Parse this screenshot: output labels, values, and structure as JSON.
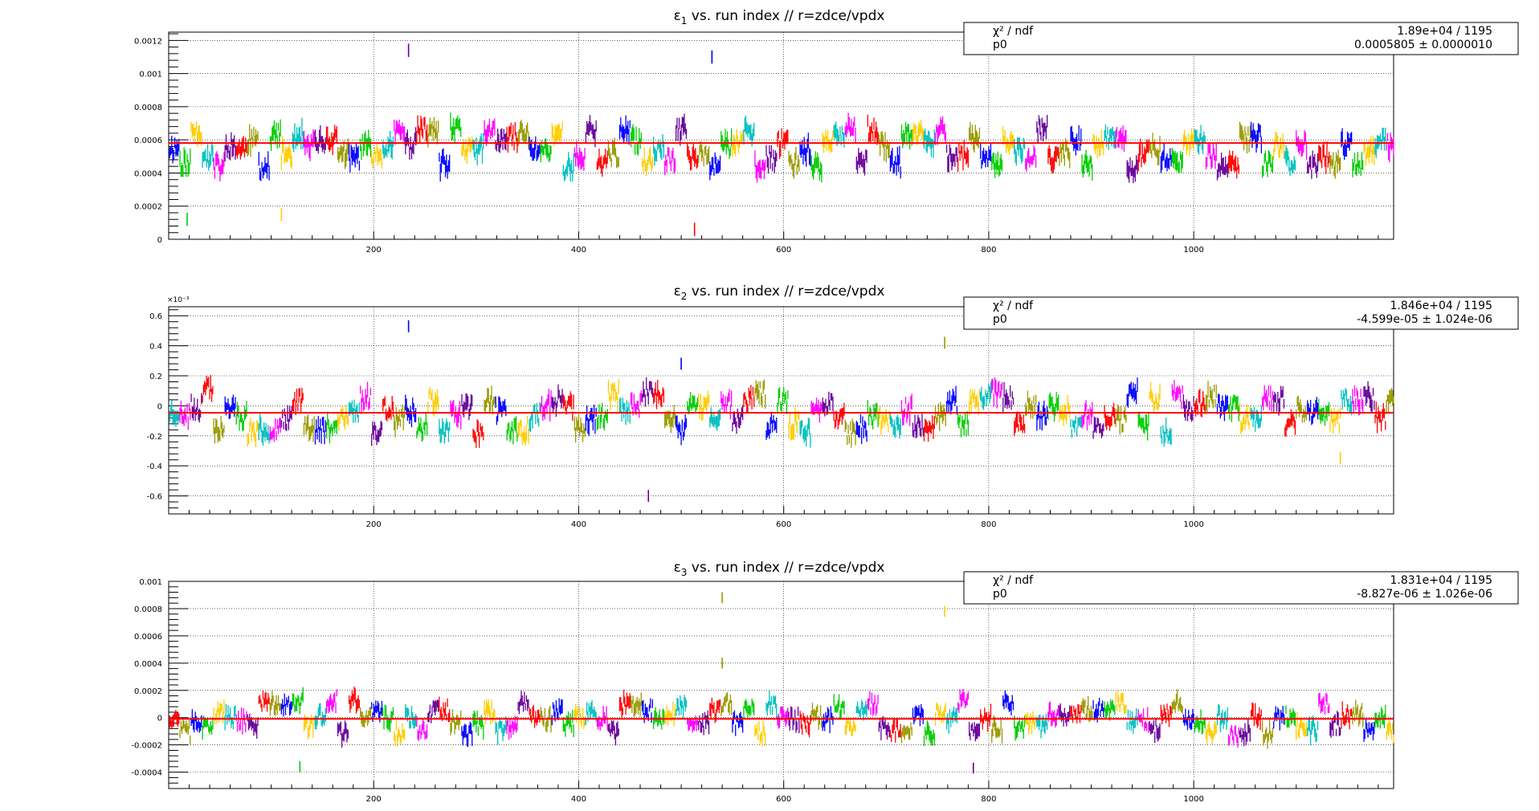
{
  "chart_data": [
    {
      "type": "scatter",
      "title_prefix": "ε",
      "title_sub": "1",
      "title_suffix": " vs. run index // r=zdce/vpdx",
      "xlabel": "",
      "ylabel": "",
      "xlim": [
        0,
        1195
      ],
      "ylim": [
        0,
        0.00125
      ],
      "xticks": [
        200,
        400,
        600,
        800,
        1000
      ],
      "yticks": [
        0,
        0.0002,
        0.0004,
        0.0006,
        0.0008,
        0.001,
        0.0012
      ],
      "ytick_labels": [
        "0",
        "0.0002",
        "0.0004",
        "0.0006",
        "0.0008",
        "0.001",
        "0.0012"
      ],
      "exponent_label": "",
      "grid": true,
      "fit": {
        "p0": 0.0005805,
        "chi2_label": "χ² / ndf",
        "chi2_value": "1.89e+04 / 1195",
        "p0_label": "p0",
        "p0_value": "0.0005805 ± 0.0000010"
      },
      "noise": {
        "base": 0.00055,
        "amp": 0.00012,
        "err": 4e-05,
        "seed": 11
      },
      "outliers": [
        {
          "x": 234,
          "y": 0.00114
        },
        {
          "x": 530,
          "y": 0.0011
        },
        {
          "x": 18,
          "y": 0.00012
        },
        {
          "x": 513,
          "y": 6e-05
        },
        {
          "x": 110,
          "y": 0.00015
        }
      ]
    },
    {
      "type": "scatter",
      "title_prefix": "ε",
      "title_sub": "2",
      "title_suffix": " vs. run index // r=zdce/vpdx",
      "xlabel": "",
      "ylabel": "",
      "xlim": [
        0,
        1195
      ],
      "ylim": [
        -0.00072,
        0.00066
      ],
      "xticks": [
        200,
        400,
        600,
        800,
        1000
      ],
      "yticks": [
        -0.0006,
        -0.0004,
        -0.0002,
        0,
        0.0002,
        0.0004,
        0.0006
      ],
      "ytick_labels": [
        "-0.6",
        "-0.4",
        "-0.2",
        "0",
        "0.2",
        "0.4",
        "0.6"
      ],
      "exponent_label": "×10⁻³",
      "grid": true,
      "fit": {
        "p0": -4.599e-05,
        "chi2_label": "χ² / ndf",
        "chi2_value": "1.846e+04 / 1195",
        "p0_label": "p0",
        "p0_value": "-4.599e-05 ± 1.024e-06"
      },
      "noise": {
        "base": -4e-05,
        "amp": 0.00014,
        "err": 4e-05,
        "seed": 23
      },
      "outliers": [
        {
          "x": 234,
          "y": 0.00053
        },
        {
          "x": 757,
          "y": 0.00042
        },
        {
          "x": 468,
          "y": -0.0006
        },
        {
          "x": 500,
          "y": 0.00028
        },
        {
          "x": 1143,
          "y": -0.00035
        }
      ]
    },
    {
      "type": "scatter",
      "title_prefix": "ε",
      "title_sub": "3",
      "title_suffix": " vs. run index // r=zdce/vpdx",
      "xlabel": "",
      "ylabel": "",
      "xlim": [
        0,
        1195
      ],
      "ylim": [
        -0.00052,
        0.001
      ],
      "xticks": [
        200,
        400,
        600,
        800,
        1000
      ],
      "yticks": [
        -0.0004,
        -0.0002,
        0,
        0.0002,
        0.0004,
        0.0006,
        0.0008,
        0.001
      ],
      "ytick_labels": [
        "-0.0004",
        "-0.0002",
        "0",
        "0.0002",
        "0.0004",
        "0.0006",
        "0.0008",
        "0.001"
      ],
      "exponent_label": "",
      "grid": true,
      "fit": {
        "p0": -8.827e-06,
        "chi2_label": "χ² / ndf",
        "chi2_value": "1.831e+04 / 1195",
        "p0_label": "p0",
        "p0_value": "-8.827e-06 ± 1.026e-06"
      },
      "noise": {
        "base": 0.0,
        "amp": 0.00013,
        "err": 4e-05,
        "seed": 37
      },
      "outliers": [
        {
          "x": 757,
          "y": 0.00078
        },
        {
          "x": 540,
          "y": 0.00088
        },
        {
          "x": 540,
          "y": 0.0004
        },
        {
          "x": 785,
          "y": -0.00037
        },
        {
          "x": 128,
          "y": -0.00036
        }
      ]
    }
  ],
  "colors": {
    "fit_line": "#ff0000",
    "palette": [
      "#0000ff",
      "#00cc00",
      "#ffcc00",
      "#00bfbf",
      "#ff00ff",
      "#660099",
      "#ff0000",
      "#999900"
    ]
  }
}
